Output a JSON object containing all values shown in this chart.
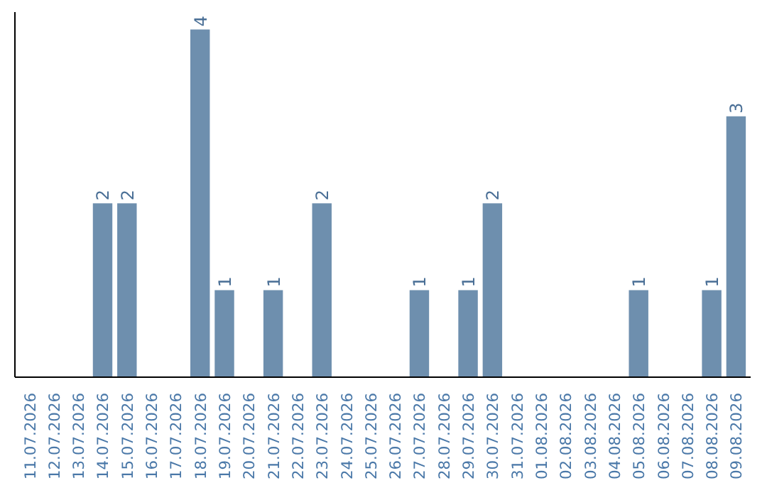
{
  "chart_data": {
    "type": "bar",
    "categories": [
      "11.07.2026",
      "12.07.2026",
      "13.07.2026",
      "14.07.2026",
      "15.07.2026",
      "16.07.2026",
      "17.07.2026",
      "18.07.2026",
      "19.07.2026",
      "20.07.2026",
      "21.07.2026",
      "22.07.2026",
      "23.07.2026",
      "24.07.2026",
      "25.07.2026",
      "26.07.2026",
      "27.07.2026",
      "28.07.2026",
      "29.07.2026",
      "30.07.2026",
      "31.07.2026",
      "01.08.2026",
      "02.08.2026",
      "03.08.2026",
      "04.08.2026",
      "05.08.2026",
      "06.08.2026",
      "07.08.2026",
      "08.08.2026",
      "09.08.2026"
    ],
    "values": [
      0,
      0,
      0,
      2,
      2,
      0,
      0,
      4,
      1,
      0,
      1,
      0,
      2,
      0,
      0,
      0,
      1,
      0,
      1,
      2,
      0,
      0,
      0,
      0,
      0,
      1,
      0,
      0,
      1,
      3
    ],
    "value_labels": [
      null,
      null,
      null,
      "2",
      "2",
      null,
      null,
      "4",
      "1",
      null,
      "1",
      null,
      "2",
      null,
      null,
      null,
      "1",
      null,
      "1",
      "2",
      null,
      null,
      null,
      null,
      null,
      "1",
      null,
      null,
      "1",
      "3"
    ],
    "color": "#6e8fae"
  }
}
